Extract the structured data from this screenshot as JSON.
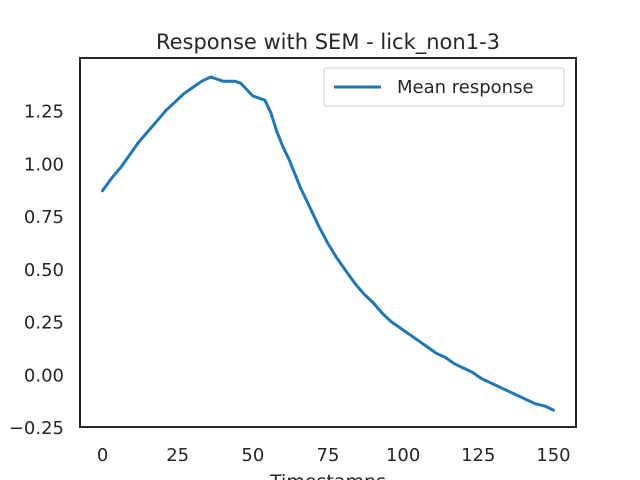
{
  "chart_data": {
    "type": "line",
    "title": "Response with SEM - lick_non1-3",
    "xlabel": "Timestamps",
    "ylabel": "",
    "xlim": [
      -7.5,
      157.5
    ],
    "ylim": [
      -0.25,
      1.5
    ],
    "xticks": [
      0,
      25,
      50,
      75,
      100,
      125,
      150
    ],
    "xtick_labels": [
      "0",
      "25",
      "50",
      "75",
      "100",
      "125",
      "150"
    ],
    "yticks": [
      -0.25,
      0.0,
      0.25,
      0.5,
      0.75,
      1.0,
      1.25
    ],
    "ytick_labels": [
      "−0.25",
      "0.00",
      "0.25",
      "0.50",
      "0.75",
      "1.00",
      "1.25"
    ],
    "grid": false,
    "legend_position": "top-right",
    "series": [
      {
        "name": "Mean response",
        "color": "#1f77b4",
        "x": [
          0,
          3,
          6,
          9,
          12,
          15,
          18,
          21,
          24,
          27,
          30,
          33,
          36,
          38,
          40,
          42,
          44,
          46,
          48,
          50,
          52,
          54,
          56,
          58,
          60,
          62,
          64,
          66,
          68,
          70,
          72,
          75,
          78,
          81,
          84,
          87,
          90,
          93,
          96,
          99,
          102,
          105,
          108,
          111,
          114,
          117,
          120,
          123,
          126,
          129,
          132,
          135,
          138,
          141,
          144,
          147,
          150
        ],
        "y": [
          0.87,
          0.93,
          0.98,
          1.04,
          1.1,
          1.15,
          1.2,
          1.25,
          1.29,
          1.33,
          1.36,
          1.39,
          1.41,
          1.4,
          1.39,
          1.39,
          1.39,
          1.38,
          1.35,
          1.32,
          1.31,
          1.3,
          1.24,
          1.15,
          1.08,
          1.02,
          0.95,
          0.88,
          0.82,
          0.76,
          0.7,
          0.62,
          0.55,
          0.49,
          0.43,
          0.38,
          0.34,
          0.29,
          0.25,
          0.22,
          0.19,
          0.16,
          0.13,
          0.1,
          0.08,
          0.05,
          0.03,
          0.01,
          -0.02,
          -0.04,
          -0.06,
          -0.08,
          -0.1,
          -0.12,
          -0.14,
          -0.15,
          -0.17
        ]
      }
    ]
  }
}
